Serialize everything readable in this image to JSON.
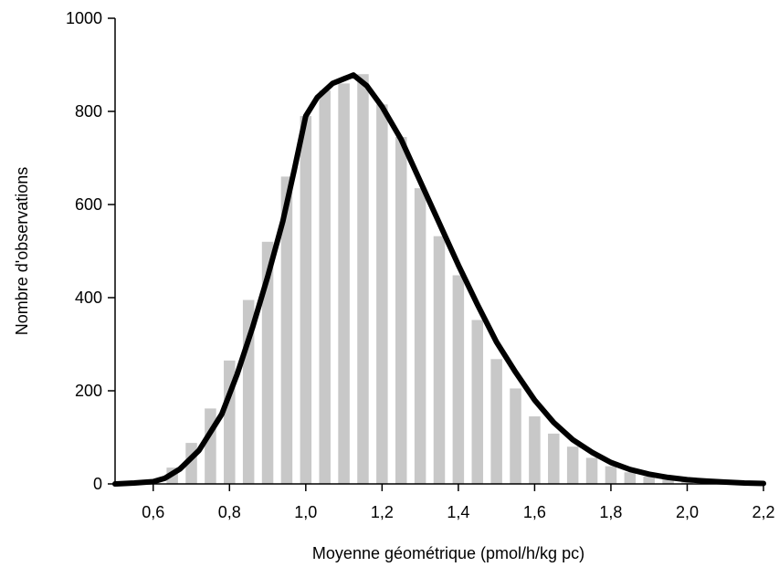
{
  "chart_data": {
    "type": "bar",
    "xlabel": "Moyenne géométrique (pmol/h/kg pc)",
    "ylabel": "Nombre d'observations",
    "xlim": [
      0.5,
      2.2
    ],
    "ylim": [
      0,
      1000
    ],
    "x_ticks": [
      "0,6",
      "0,8",
      "1,0",
      "1,2",
      "1,4",
      "1,6",
      "1,8",
      "2,0",
      "2,2"
    ],
    "x_tick_values": [
      0.6,
      0.8,
      1.0,
      1.2,
      1.4,
      1.6,
      1.8,
      2.0,
      2.2
    ],
    "y_ticks": [
      "0",
      "200",
      "400",
      "600",
      "800",
      "1000"
    ],
    "y_tick_values": [
      0,
      200,
      400,
      600,
      800,
      1000
    ],
    "grid": false,
    "bars": {
      "x": [
        0.55,
        0.6,
        0.65,
        0.7,
        0.75,
        0.8,
        0.85,
        0.9,
        0.95,
        1.0,
        1.05,
        1.1,
        1.15,
        1.2,
        1.25,
        1.3,
        1.35,
        1.4,
        1.45,
        1.5,
        1.55,
        1.6,
        1.65,
        1.7,
        1.75,
        1.8,
        1.85,
        1.9,
        1.95,
        2.0,
        2.05,
        2.1,
        2.15
      ],
      "values": [
        2,
        8,
        35,
        88,
        162,
        265,
        395,
        520,
        660,
        790,
        845,
        860,
        880,
        815,
        745,
        635,
        532,
        448,
        352,
        268,
        205,
        145,
        108,
        80,
        56,
        38,
        25,
        16,
        10,
        6,
        4,
        2,
        1
      ]
    },
    "series": [
      {
        "type": "line",
        "x": [
          0.5,
          0.55,
          0.6,
          0.63,
          0.67,
          0.72,
          0.78,
          0.82,
          0.86,
          0.9,
          0.94,
          0.97,
          1.0,
          1.03,
          1.07,
          1.1,
          1.125,
          1.16,
          1.2,
          1.25,
          1.3,
          1.35,
          1.4,
          1.45,
          1.5,
          1.55,
          1.6,
          1.65,
          1.7,
          1.75,
          1.8,
          1.85,
          1.9,
          1.95,
          2.0,
          2.05,
          2.1,
          2.15,
          2.2
        ],
        "values": [
          0,
          2,
          5,
          12,
          32,
          72,
          150,
          235,
          335,
          445,
          565,
          675,
          790,
          830,
          860,
          870,
          878,
          855,
          810,
          740,
          650,
          560,
          470,
          385,
          305,
          240,
          180,
          132,
          95,
          68,
          46,
          31,
          21,
          14,
          9,
          6,
          4,
          2,
          1
        ]
      }
    ]
  }
}
